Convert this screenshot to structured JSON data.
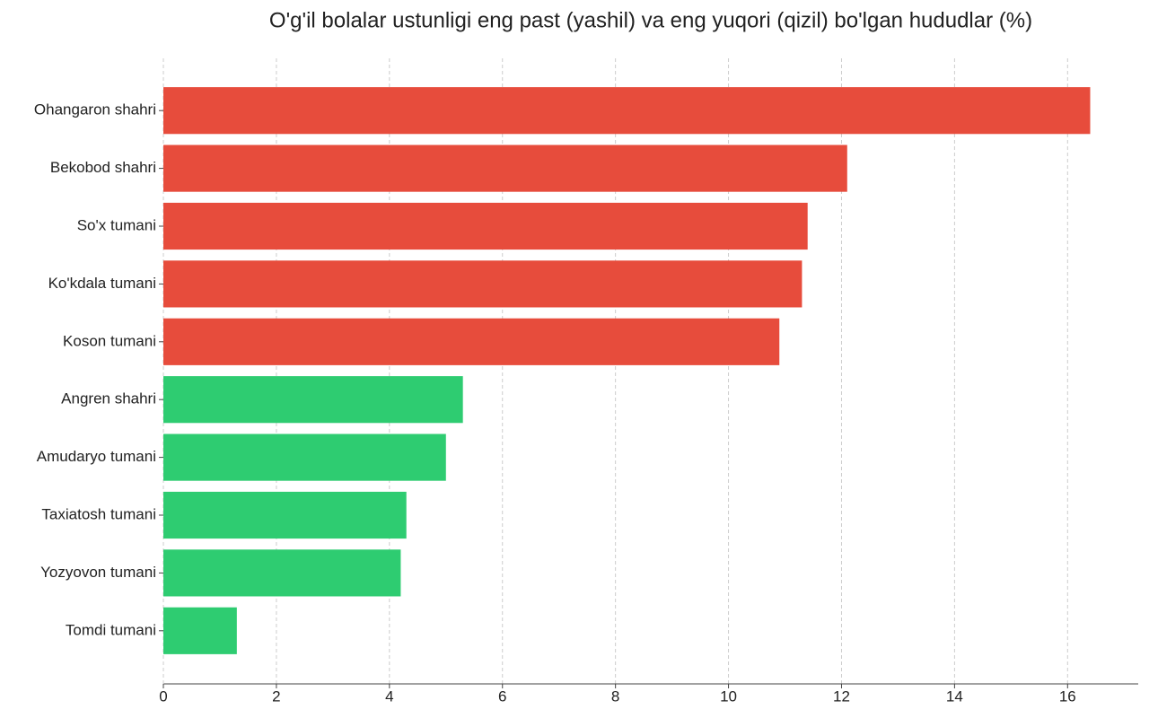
{
  "chart_data": {
    "type": "bar",
    "orientation": "horizontal",
    "title": "O'g'il bolalar ustunligi eng past (yashil) va eng yuqori (qizil) bo'lgan hududlar (%)",
    "categories": [
      "Ohangaron shahri",
      "Bekobod shahri",
      "So'x tumani",
      "Ko'kdala tumani",
      "Koson tumani",
      "Angren shahri",
      "Amudaryo tumani",
      "Taxiatosh tumani",
      "Yozyovon tumani",
      "Tomdi tumani"
    ],
    "values": [
      16.4,
      12.1,
      11.4,
      11.3,
      10.9,
      5.3,
      5.0,
      4.3,
      4.2,
      1.3
    ],
    "colors": [
      "#e74c3c",
      "#e74c3c",
      "#e74c3c",
      "#e74c3c",
      "#e74c3c",
      "#2ecc71",
      "#2ecc71",
      "#2ecc71",
      "#2ecc71",
      "#2ecc71"
    ],
    "xlim": [
      0,
      17.25
    ],
    "xticks": [
      0,
      2,
      4,
      6,
      8,
      10,
      12,
      14,
      16
    ],
    "grid": true
  }
}
